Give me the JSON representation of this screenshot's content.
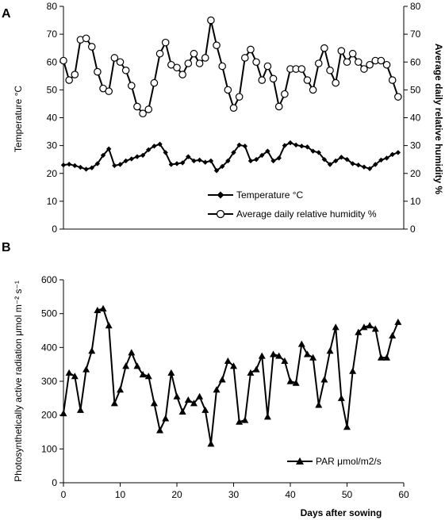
{
  "chart_data": [
    {
      "panel_label": "A",
      "type": "line",
      "ylabel": "Temperature °C",
      "y2label": "Average daily relative humidity %",
      "xlim": [
        0,
        60
      ],
      "ylim": [
        0,
        80
      ],
      "y2lim": [
        0,
        80
      ],
      "y_ticks": [
        "0",
        "10",
        "20",
        "30",
        "40",
        "50",
        "60",
        "70",
        "80"
      ],
      "y2_ticks": [
        "0",
        "10",
        "20",
        "30",
        "40",
        "50",
        "60",
        "70",
        "80"
      ],
      "legend_position": "bottom-right",
      "series": [
        {
          "name": "Temperature °C",
          "marker": "diamond",
          "x": [
            0,
            1,
            2,
            3,
            4,
            5,
            6,
            7,
            8,
            9,
            10,
            11,
            12,
            13,
            14,
            15,
            16,
            17,
            18,
            19,
            20,
            21,
            22,
            23,
            24,
            25,
            26,
            27,
            28,
            29,
            30,
            31,
            32,
            33,
            34,
            35,
            36,
            37,
            38,
            39,
            40,
            41,
            42,
            43,
            44,
            45,
            46,
            47,
            48,
            49,
            50,
            51,
            52,
            53,
            54,
            55,
            56,
            57,
            58,
            59
          ],
          "y": [
            23,
            23.3,
            22.8,
            22.2,
            21.5,
            22,
            23.5,
            26.5,
            28.8,
            22.8,
            23.2,
            24.5,
            25.2,
            26,
            26.5,
            28.5,
            29.8,
            30.5,
            27.5,
            23.2,
            23.5,
            23.8,
            26,
            24.5,
            24.8,
            24,
            24.5,
            21,
            22.5,
            24.5,
            27.5,
            30.2,
            29.8,
            24.5,
            25,
            26.5,
            28,
            24.5,
            25.5,
            30,
            31,
            30.2,
            29.8,
            29.5,
            28,
            27.5,
            25,
            23.2,
            24.5,
            25.8,
            25,
            23.5,
            23,
            22.3,
            21.7,
            23.2,
            24.8,
            25.5,
            26.8,
            27.5
          ]
        },
        {
          "name": "Average daily relative humidity %",
          "marker": "circle-open",
          "x": [
            0,
            1,
            2,
            3,
            4,
            5,
            6,
            7,
            8,
            9,
            10,
            11,
            12,
            13,
            14,
            15,
            16,
            17,
            18,
            19,
            20,
            21,
            22,
            23,
            24,
            25,
            26,
            27,
            28,
            29,
            30,
            31,
            32,
            33,
            34,
            35,
            36,
            37,
            38,
            39,
            40,
            41,
            42,
            43,
            44,
            45,
            46,
            47,
            48,
            49,
            50,
            51,
            52,
            53,
            54,
            55,
            56,
            57,
            58,
            59
          ],
          "y": [
            60.5,
            53.5,
            55.5,
            68,
            68.5,
            65.5,
            56.5,
            50.5,
            49.5,
            61.5,
            60,
            57,
            51.5,
            44,
            41.5,
            43,
            52.5,
            63,
            67,
            59,
            58,
            55.5,
            59.5,
            63,
            59.5,
            61.5,
            75,
            66,
            58.5,
            50,
            43.5,
            47.5,
            61.5,
            64.5,
            60,
            53.5,
            58.5,
            54,
            44,
            48.5,
            57.5,
            57.5,
            57.5,
            53.5,
            50,
            59.5,
            65,
            57,
            52.5,
            64,
            60,
            63,
            60,
            57.5,
            59,
            60.5,
            60.5,
            59,
            53.5,
            47.5
          ]
        }
      ]
    },
    {
      "panel_label": "B",
      "type": "line",
      "ylabel": "Photosynthetically active radiation μmol m⁻² s⁻¹",
      "xlabel": "Days after sowing",
      "xlim": [
        0,
        60
      ],
      "ylim": [
        0,
        600
      ],
      "x_ticks": [
        "0",
        "10",
        "20",
        "30",
        "40",
        "50",
        "60"
      ],
      "y_ticks": [
        "0",
        "100",
        "200",
        "300",
        "400",
        "500",
        "600"
      ],
      "legend_position": "bottom-right",
      "series": [
        {
          "name": "PAR μmol/m2/s",
          "marker": "triangle",
          "x": [
            0,
            1,
            2,
            3,
            4,
            5,
            6,
            7,
            8,
            9,
            10,
            11,
            12,
            13,
            14,
            15,
            16,
            17,
            18,
            19,
            20,
            21,
            22,
            23,
            24,
            25,
            26,
            27,
            28,
            29,
            30,
            31,
            32,
            33,
            34,
            35,
            36,
            37,
            38,
            39,
            40,
            41,
            42,
            43,
            44,
            45,
            46,
            47,
            48,
            49,
            50,
            51,
            52,
            53,
            54,
            55,
            56,
            57,
            58,
            59
          ],
          "y": [
            205,
            325,
            315,
            215,
            335,
            390,
            510,
            515,
            465,
            235,
            275,
            345,
            385,
            345,
            320,
            315,
            235,
            155,
            190,
            325,
            255,
            210,
            245,
            235,
            255,
            215,
            115,
            275,
            305,
            360,
            345,
            180,
            185,
            325,
            335,
            375,
            195,
            380,
            375,
            360,
            300,
            295,
            410,
            380,
            370,
            230,
            305,
            390,
            460,
            250,
            165,
            330,
            445,
            460,
            465,
            455,
            370,
            370,
            435,
            475
          ]
        }
      ]
    }
  ]
}
